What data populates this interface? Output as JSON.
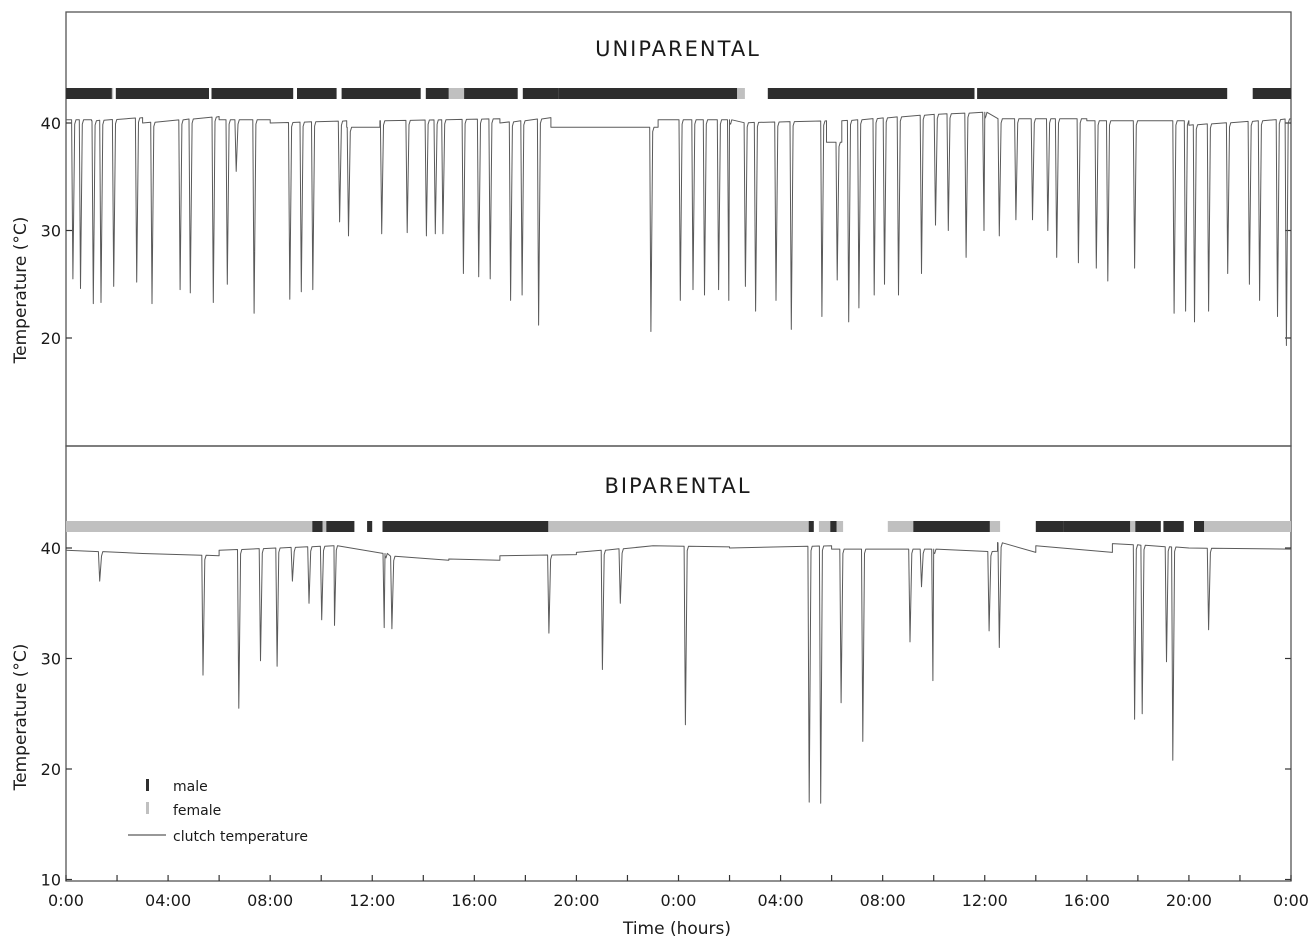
{
  "chart_data": [
    {
      "type": "line",
      "panel": "uniparental",
      "title": "UNIPARENTAL",
      "xlabel": "",
      "ylabel": "Temperature (°C)",
      "yticks": [
        20,
        30,
        40
      ],
      "ylim": [
        10,
        50
      ],
      "xlim": [
        0,
        48
      ],
      "grid": false,
      "line_color": "#5a5a5a",
      "attendance_colors": {
        "male": "#2e2e2e",
        "female": "#c0c0c0"
      },
      "baseline_segments": [
        {
          "x": [
            0.0,
            1.0
          ],
          "y": [
            40.3,
            40.3
          ]
        },
        {
          "x": [
            1.0,
            3.0
          ],
          "y": [
            40.2,
            40.5
          ]
        },
        {
          "x": [
            3.0,
            6.0
          ],
          "y": [
            40.0,
            40.6
          ]
        },
        {
          "x": [
            6.0,
            8.0
          ],
          "y": [
            40.3,
            40.3
          ]
        },
        {
          "x": [
            8.0,
            11.0
          ],
          "y": [
            40.0,
            40.2
          ]
        },
        {
          "x": [
            11.0,
            12.3
          ],
          "y": [
            39.6,
            39.6
          ]
        },
        {
          "x": [
            12.3,
            17.0
          ],
          "y": [
            40.2,
            40.4
          ]
        },
        {
          "x": [
            17.0,
            19.0
          ],
          "y": [
            40.0,
            40.5
          ]
        },
        {
          "x": [
            19.0,
            23.2
          ],
          "y": [
            39.6,
            39.6
          ]
        },
        {
          "x": [
            23.2,
            26.0
          ],
          "y": [
            40.3,
            40.3
          ]
        },
        {
          "x": [
            26.0,
            29.8
          ],
          "y": [
            40.0,
            40.2
          ]
        },
        {
          "x": [
            29.8,
            30.4
          ],
          "y": [
            38.2,
            38.2
          ]
        },
        {
          "x": [
            30.4,
            34.0
          ],
          "y": [
            40.2,
            40.8
          ]
        },
        {
          "x": [
            34.0,
            36.0
          ],
          "y": [
            40.8,
            41.0
          ]
        },
        {
          "x": [
            36.0,
            40.0
          ],
          "y": [
            40.4,
            40.4
          ]
        },
        {
          "x": [
            40.0,
            44.0
          ],
          "y": [
            40.2,
            40.2
          ]
        },
        {
          "x": [
            44.0,
            48.0
          ],
          "y": [
            39.8,
            40.4
          ]
        }
      ],
      "dips": [
        [
          0.25,
          25.5
        ],
        [
          0.55,
          24.6
        ],
        [
          1.05,
          23.2
        ],
        [
          1.35,
          23.3
        ],
        [
          1.85,
          24.8
        ],
        [
          2.75,
          25.2
        ],
        [
          3.35,
          23.2
        ],
        [
          4.45,
          24.5
        ],
        [
          4.85,
          24.2
        ],
        [
          5.75,
          23.3
        ],
        [
          6.3,
          25.0
        ],
        [
          6.65,
          35.5
        ],
        [
          7.35,
          22.3
        ],
        [
          8.75,
          23.6
        ],
        [
          9.2,
          24.3
        ],
        [
          9.65,
          24.5
        ],
        [
          10.7,
          30.8
        ],
        [
          11.05,
          29.5
        ],
        [
          12.35,
          29.7
        ],
        [
          13.35,
          29.8
        ],
        [
          14.1,
          29.5
        ],
        [
          14.45,
          29.7
        ],
        [
          14.75,
          29.7
        ],
        [
          15.55,
          26.0
        ],
        [
          16.15,
          25.7
        ],
        [
          16.6,
          25.5
        ],
        [
          17.4,
          23.5
        ],
        [
          17.85,
          24.0
        ],
        [
          18.5,
          21.2
        ],
        [
          22.9,
          20.6
        ],
        [
          24.05,
          23.5
        ],
        [
          24.55,
          24.5
        ],
        [
          25.0,
          24.0
        ],
        [
          25.55,
          24.5
        ],
        [
          25.95,
          23.5
        ],
        [
          26.6,
          24.8
        ],
        [
          27.0,
          22.5
        ],
        [
          27.8,
          23.5
        ],
        [
          28.4,
          20.8
        ],
        [
          29.6,
          22.0
        ],
        [
          30.2,
          25.4
        ],
        [
          30.65,
          21.5
        ],
        [
          31.05,
          22.8
        ],
        [
          31.65,
          24.0
        ],
        [
          32.05,
          25.0
        ],
        [
          32.6,
          24.0
        ],
        [
          33.5,
          26.0
        ],
        [
          34.05,
          30.5
        ],
        [
          34.55,
          30.0
        ],
        [
          35.25,
          27.5
        ],
        [
          35.95,
          30.0
        ],
        [
          36.55,
          29.5
        ],
        [
          37.2,
          31.0
        ],
        [
          37.85,
          31.0
        ],
        [
          38.45,
          30.0
        ],
        [
          38.8,
          27.5
        ],
        [
          39.65,
          27.0
        ],
        [
          40.35,
          26.5
        ],
        [
          40.8,
          25.3
        ],
        [
          41.85,
          26.5
        ],
        [
          43.4,
          22.3
        ],
        [
          43.85,
          22.5
        ],
        [
          44.2,
          21.5
        ],
        [
          44.75,
          22.5
        ],
        [
          45.5,
          26.0
        ],
        [
          46.35,
          25.0
        ],
        [
          46.75,
          23.5
        ],
        [
          47.45,
          22.0
        ],
        [
          47.8,
          19.3
        ]
      ],
      "attendance": [
        {
          "start": 0.0,
          "end": 1.8,
          "who": "male"
        },
        {
          "start": 1.8,
          "end": 1.85,
          "who": "female"
        },
        {
          "start": 1.95,
          "end": 5.6,
          "who": "male"
        },
        {
          "start": 5.7,
          "end": 8.9,
          "who": "male"
        },
        {
          "start": 9.05,
          "end": 10.6,
          "who": "male"
        },
        {
          "start": 10.8,
          "end": 13.9,
          "who": "male"
        },
        {
          "start": 14.1,
          "end": 15.0,
          "who": "male"
        },
        {
          "start": 15.0,
          "end": 15.6,
          "who": "female"
        },
        {
          "start": 15.6,
          "end": 17.7,
          "who": "male"
        },
        {
          "start": 17.9,
          "end": 19.3,
          "who": "male"
        },
        {
          "start": 19.3,
          "end": 26.3,
          "who": "male"
        },
        {
          "start": 26.3,
          "end": 26.6,
          "who": "female"
        },
        {
          "start": 27.5,
          "end": 35.6,
          "who": "male"
        },
        {
          "start": 35.7,
          "end": 45.5,
          "who": "male"
        },
        {
          "start": 46.5,
          "end": 48.0,
          "who": "male"
        }
      ]
    },
    {
      "type": "line",
      "panel": "biparental",
      "title": "BIPARENTAL",
      "xlabel": "Time (hours)",
      "ylabel": "Temperature (°C)",
      "yticks": [
        10,
        20,
        30,
        40
      ],
      "ylim": [
        10,
        50
      ],
      "xlim": [
        0,
        48
      ],
      "xtick_labels": [
        "0:00",
        "04:00",
        "08:00",
        "12:00",
        "16:00",
        "20:00",
        "0:00",
        "04:00",
        "08:00",
        "12:00",
        "16:00",
        "20:00",
        "0:00"
      ],
      "grid": false,
      "line_color": "#5a5a5a",
      "attendance_colors": {
        "male": "#2e2e2e",
        "female": "#c0c0c0"
      },
      "baseline_segments": [
        {
          "x": [
            0.0,
            3.0
          ],
          "y": [
            39.8,
            39.5
          ]
        },
        {
          "x": [
            3.0,
            6.0
          ],
          "y": [
            39.5,
            39.3
          ]
        },
        {
          "x": [
            6.0,
            10.5
          ],
          "y": [
            39.8,
            40.2
          ]
        },
        {
          "x": [
            10.5,
            12.5
          ],
          "y": [
            39.8,
            39.5
          ]
        },
        {
          "x": [
            12.5,
            15.0
          ],
          "y": [
            39.3,
            38.9
          ]
        },
        {
          "x": [
            15.0,
            17.0
          ],
          "y": [
            39.0,
            38.9
          ]
        },
        {
          "x": [
            17.0,
            20.0
          ],
          "y": [
            39.3,
            39.4
          ]
        },
        {
          "x": [
            20.0,
            23.0
          ],
          "y": [
            39.6,
            40.2
          ]
        },
        {
          "x": [
            23.0,
            26.0
          ],
          "y": [
            40.2,
            40.1
          ]
        },
        {
          "x": [
            26.0,
            30.0
          ],
          "y": [
            40.0,
            40.2
          ]
        },
        {
          "x": [
            30.0,
            34.0
          ],
          "y": [
            39.9,
            39.9
          ]
        },
        {
          "x": [
            34.0,
            36.5
          ],
          "y": [
            39.6,
            39.7
          ]
        },
        {
          "x": [
            36.5,
            38.0
          ],
          "y": [
            40.5,
            39.6
          ]
        },
        {
          "x": [
            38.0,
            41.0
          ],
          "y": [
            40.2,
            39.6
          ]
        },
        {
          "x": [
            41.0,
            44.0
          ],
          "y": [
            40.4,
            40.0
          ]
        },
        {
          "x": [
            44.0,
            48.0
          ],
          "y": [
            40.0,
            39.9
          ]
        }
      ],
      "dips": [
        [
          1.3,
          37.0
        ],
        [
          5.35,
          28.5
        ],
        [
          6.75,
          25.5
        ],
        [
          7.6,
          29.8
        ],
        [
          8.25,
          29.3
        ],
        [
          8.85,
          37.0
        ],
        [
          9.5,
          35.0
        ],
        [
          10.0,
          33.5
        ],
        [
          10.5,
          33.0
        ],
        [
          12.45,
          32.8
        ],
        [
          12.75,
          32.7
        ],
        [
          18.9,
          32.3
        ],
        [
          21.0,
          29.0
        ],
        [
          21.7,
          35.0
        ],
        [
          24.25,
          24.0
        ],
        [
          29.1,
          17.0
        ],
        [
          29.55,
          16.9
        ],
        [
          30.35,
          26.0
        ],
        [
          31.2,
          22.5
        ],
        [
          33.05,
          31.5
        ],
        [
          33.5,
          36.5
        ],
        [
          33.95,
          28.0
        ],
        [
          36.15,
          32.5
        ],
        [
          36.55,
          31.0
        ],
        [
          41.85,
          24.5
        ],
        [
          42.15,
          25.0
        ],
        [
          43.1,
          29.7
        ],
        [
          43.35,
          20.8
        ],
        [
          44.75,
          32.6
        ],
        [
          48.0,
          30.0
        ]
      ],
      "attendance": [
        {
          "start": 0.0,
          "end": 9.65,
          "who": "female"
        },
        {
          "start": 9.65,
          "end": 10.05,
          "who": "male"
        },
        {
          "start": 10.05,
          "end": 10.2,
          "who": "female"
        },
        {
          "start": 10.2,
          "end": 11.3,
          "who": "male"
        },
        {
          "start": 11.8,
          "end": 12.0,
          "who": "male"
        },
        {
          "start": 12.4,
          "end": 18.9,
          "who": "male"
        },
        {
          "start": 18.9,
          "end": 29.1,
          "who": "female"
        },
        {
          "start": 29.1,
          "end": 29.3,
          "who": "male"
        },
        {
          "start": 29.5,
          "end": 29.95,
          "who": "female"
        },
        {
          "start": 29.95,
          "end": 30.2,
          "who": "male"
        },
        {
          "start": 30.2,
          "end": 30.45,
          "who": "female"
        },
        {
          "start": 32.2,
          "end": 33.2,
          "who": "female"
        },
        {
          "start": 33.2,
          "end": 36.2,
          "who": "male"
        },
        {
          "start": 36.2,
          "end": 36.6,
          "who": "female"
        },
        {
          "start": 38.0,
          "end": 39.1,
          "who": "male"
        },
        {
          "start": 39.1,
          "end": 41.7,
          "who": "male"
        },
        {
          "start": 41.7,
          "end": 41.9,
          "who": "female"
        },
        {
          "start": 41.9,
          "end": 42.9,
          "who": "male"
        },
        {
          "start": 43.0,
          "end": 43.8,
          "who": "male"
        },
        {
          "start": 44.2,
          "end": 44.6,
          "who": "male"
        },
        {
          "start": 44.6,
          "end": 48.0,
          "who": "female"
        }
      ],
      "legend": {
        "placement": "bottom-left",
        "items": [
          {
            "label": "male",
            "color": "#2e2e2e"
          },
          {
            "label": "female",
            "color": "#c0c0c0"
          },
          {
            "label": "clutch temperature",
            "color": "#5a5a5a"
          }
        ]
      }
    }
  ]
}
